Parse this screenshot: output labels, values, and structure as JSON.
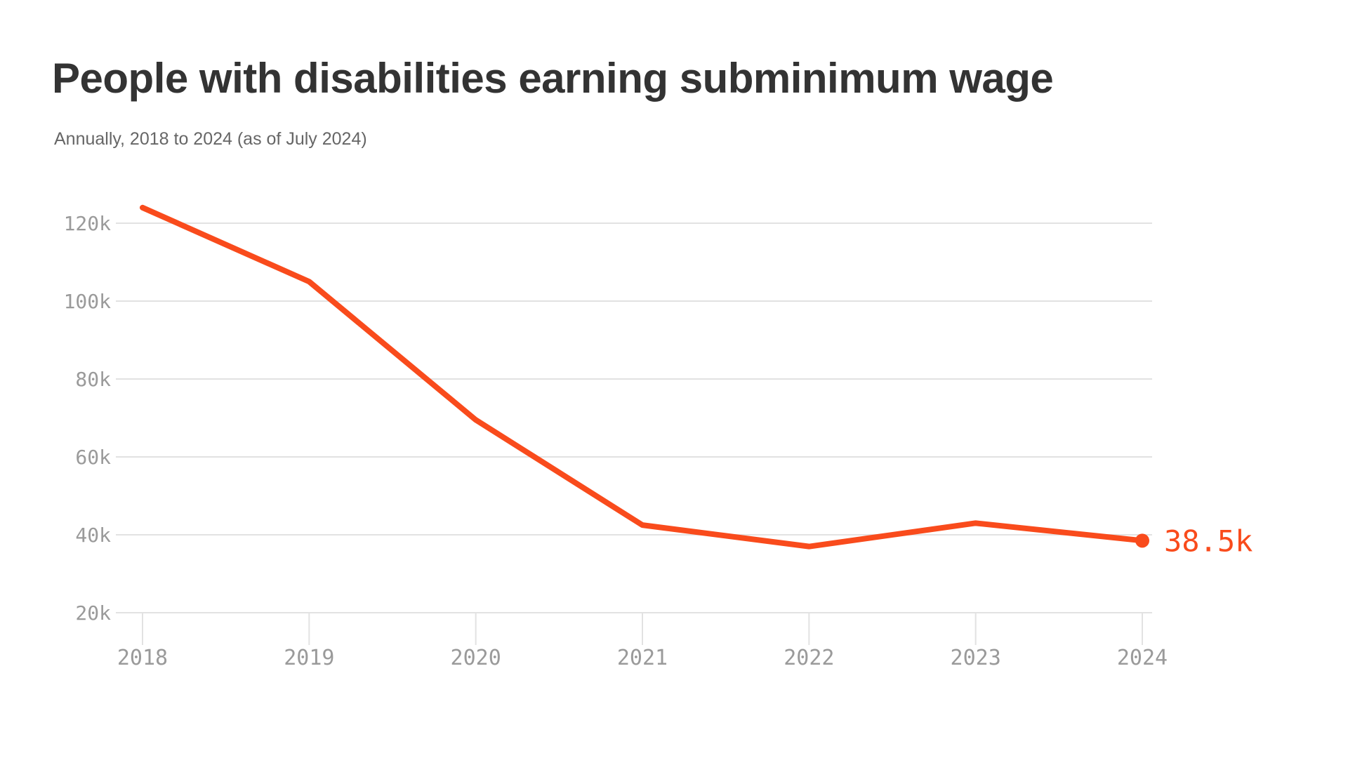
{
  "header": {
    "title": "People with disabilities earning subminimum wage",
    "subtitle": "Annually, 2018 to 2024 (as of July 2024)"
  },
  "colors": {
    "background": "#FFFFFF",
    "line": "#F94B1C",
    "end_dot": "#F94B1C",
    "end_label": "#F94B1C",
    "grid": "#E2E2E2",
    "tick": "#E2E2E2",
    "axis_label": "#9A9A9A",
    "title_text": "#333333",
    "subtitle_text": "#666666"
  },
  "chart_data": {
    "type": "line",
    "title": "People with disabilities earning subminimum wage",
    "subtitle": "Annually, 2018 to 2024 (as of July 2024)",
    "categories": [
      "2018",
      "2019",
      "2020",
      "2021",
      "2022",
      "2023",
      "2024"
    ],
    "series": [
      {
        "name": "People with disabilities earning subminimum wage",
        "values_thousands": [
          124,
          105,
          69.5,
          42.5,
          37,
          43,
          38.5
        ]
      }
    ],
    "value_unit": "thousands of people",
    "ytick_labels": [
      "120k",
      "100k",
      "80k",
      "60k",
      "40k",
      "20k"
    ],
    "ytick_values_thousands": [
      120,
      100,
      80,
      60,
      40,
      20
    ],
    "ylim_thousands": [
      20,
      133
    ],
    "end_label": "38.5k",
    "grid": true,
    "legend": false,
    "line_width": 8
  }
}
